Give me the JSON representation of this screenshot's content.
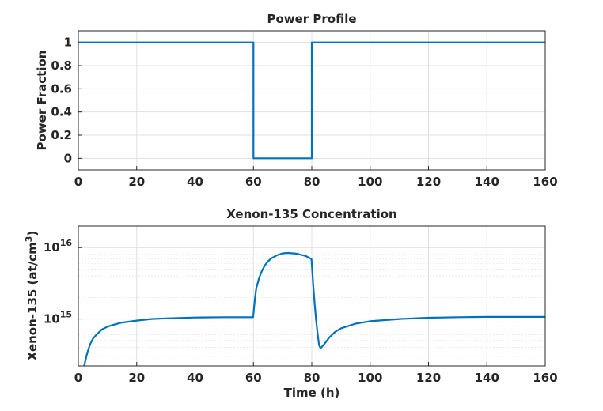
{
  "chart_data": [
    {
      "type": "line",
      "title": "Power Profile",
      "xlabel": "",
      "ylabel": "Power Fraction",
      "xlim": [
        0,
        160
      ],
      "ylim": [
        -0.1,
        1.1
      ],
      "xticks": [
        0,
        20,
        40,
        60,
        80,
        100,
        120,
        140,
        160
      ],
      "xtick_labels": [
        "0",
        "20",
        "40",
        "60",
        "80",
        "100",
        "120",
        "140",
        "160"
      ],
      "yticks": [
        0,
        0.2,
        0.4,
        0.6,
        0.8,
        1
      ],
      "ytick_labels": [
        "0",
        "0.2",
        "0.4",
        "0.6",
        "0.8",
        "1"
      ],
      "grid": true,
      "color": "#0072BD",
      "series": [
        {
          "x": [
            0,
            60,
            60,
            80,
            80,
            160
          ],
          "y": [
            1,
            1,
            0,
            0,
            1,
            1
          ]
        }
      ]
    },
    {
      "type": "line",
      "title": "Xenon-135 Concentration",
      "xlabel": "Time (h)",
      "ylabel": "Xenon-135 (at/cm",
      "ylabel_sup": "3",
      "ylabel_end": ")",
      "yscale": "log",
      "xlim": [
        0,
        160
      ],
      "ylim": [
        220000000000000.0,
        2e+16
      ],
      "xticks": [
        0,
        20,
        40,
        60,
        80,
        100,
        120,
        140,
        160
      ],
      "xtick_labels": [
        "0",
        "20",
        "40",
        "60",
        "80",
        "100",
        "120",
        "140",
        "160"
      ],
      "yticks": [
        1000000000000000.0,
        1e+16
      ],
      "ytick_base": "10",
      "ytick_exponents": [
        "15",
        "16"
      ],
      "grid": true,
      "color": "#0072BD",
      "series": [
        {
          "x": [
            2,
            3,
            4,
            5,
            6,
            8,
            10,
            12,
            15,
            20,
            25,
            30,
            40,
            50,
            59.9,
            60.5,
            61,
            62,
            63,
            64,
            65,
            66,
            68,
            70,
            72,
            75,
            78,
            79.9,
            80.5,
            81,
            81.5,
            82,
            82.5,
            83,
            84,
            86,
            88,
            90,
            95,
            100,
            110,
            120,
            130,
            140,
            150,
            160
          ],
          "y": [
            220000000000000.0,
            330000000000000.0,
            440000000000000.0,
            530000000000000.0,
            590000000000000.0,
            710000000000000.0,
            780000000000000.0,
            830000000000000.0,
            890000000000000.0,
            950000000000000.0,
            1000000000000000.0,
            1020000000000000.0,
            1050000000000000.0,
            1060000000000000.0,
            1060000000000000.0,
            1900000000000000.0,
            2700000000000000.0,
            3800000000000000.0,
            4800000000000000.0,
            5700000000000000.0,
            6400000000000000.0,
            7000000000000000.0,
            7800000000000000.0,
            8300000000000000.0,
            8400000000000000.0,
            8200000000000000.0,
            7600000000000000.0,
            6900000000000000.0,
            3000000000000000.0,
            1600000000000000.0,
            950000000000000.0,
            620000000000000.0,
            430000000000000.0,
            390000000000000.0,
            430000000000000.0,
            550000000000000.0,
            660000000000000.0,
            740000000000000.0,
            860000000000000.0,
            930000000000000.0,
            1000000000000000.0,
            1040000000000000.0,
            1060000000000000.0,
            1070000000000000.0,
            1070000000000000.0,
            1070000000000000.0
          ]
        }
      ]
    }
  ]
}
